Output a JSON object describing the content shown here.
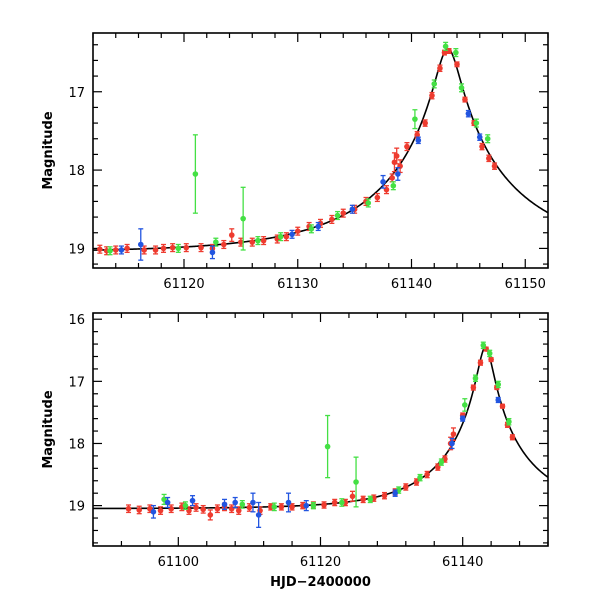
{
  "chart_data": [
    {
      "type": "scatter",
      "title": "",
      "xlabel": "",
      "ylabel": "Magnitude",
      "xlim": [
        61112,
        61152
      ],
      "ylim": [
        19.25,
        16.25
      ],
      "x_ticks": [
        61120,
        61130,
        61140,
        61150
      ],
      "x_tick_labels": [
        "61120",
        "61130",
        "61140",
        "61150"
      ],
      "y_ticks": [
        17,
        18,
        19
      ],
      "y_tick_labels": [
        "17",
        "18",
        "19"
      ],
      "model": {
        "baseline": 19.05,
        "peak_mag": 16.45,
        "t0": 61143.2,
        "u0": 0.085,
        "tE": 12
      },
      "series": [
        {
          "name": "red",
          "color": "#ee3b2f",
          "points": [
            [
              61112.6,
              19.01
            ],
            [
              61113.2,
              19.03
            ],
            [
              61114.0,
              19.02
            ],
            [
              61115.0,
              19.0
            ],
            [
              61116.5,
              19.02
            ],
            [
              61117.5,
              19.02
            ],
            [
              61118.2,
              19.0
            ],
            [
              61119.0,
              18.99
            ],
            [
              61120.2,
              18.99
            ],
            [
              61121.5,
              18.99
            ],
            [
              61122.5,
              19.0
            ],
            [
              61123.5,
              18.95
            ],
            [
              61124.2,
              18.83
            ],
            [
              61125.0,
              18.92
            ],
            [
              61126.0,
              18.92
            ],
            [
              61127.0,
              18.9
            ],
            [
              61128.2,
              18.88
            ],
            [
              61129.0,
              18.85
            ],
            [
              61130.0,
              18.78
            ],
            [
              61131.0,
              18.72
            ],
            [
              61132.0,
              18.68
            ],
            [
              61133.0,
              18.63
            ],
            [
              61134.0,
              18.55
            ],
            [
              61135.0,
              18.5
            ],
            [
              61136.0,
              18.4
            ],
            [
              61137.0,
              18.35
            ],
            [
              61137.8,
              18.25
            ],
            [
              61138.3,
              18.1
            ],
            [
              61138.5,
              17.9
            ],
            [
              61138.7,
              17.82
            ],
            [
              61139.0,
              17.95
            ],
            [
              61139.6,
              17.7
            ],
            [
              61140.5,
              17.55
            ],
            [
              61141.2,
              17.4
            ],
            [
              61141.8,
              17.05
            ],
            [
              61142.5,
              16.7
            ],
            [
              61142.9,
              16.5
            ],
            [
              61143.3,
              16.48
            ],
            [
              61144.0,
              16.65
            ],
            [
              61144.7,
              17.1
            ],
            [
              61145.5,
              17.4
            ],
            [
              61146.2,
              17.7
            ],
            [
              61146.8,
              17.85
            ],
            [
              61147.3,
              17.95
            ]
          ],
          "err": [
            0.05,
            0.05,
            0.05,
            0.05,
            0.05,
            0.05,
            0.05,
            0.05,
            0.05,
            0.05,
            0.05,
            0.05,
            0.08,
            0.05,
            0.05,
            0.05,
            0.05,
            0.05,
            0.05,
            0.05,
            0.05,
            0.05,
            0.05,
            0.05,
            0.05,
            0.05,
            0.05,
            0.05,
            0.12,
            0.1,
            0.08,
            0.05,
            0.04,
            0.04,
            0.04,
            0.04,
            0.03,
            0.03,
            0.03,
            0.03,
            0.03,
            0.04,
            0.04,
            0.04
          ]
        },
        {
          "name": "green",
          "color": "#44e044",
          "points": [
            [
              61113.5,
              19.03
            ],
            [
              61119.5,
              19.0
            ],
            [
              61121.0,
              18.05
            ],
            [
              61122.8,
              18.92
            ],
            [
              61125.2,
              18.62
            ],
            [
              61126.5,
              18.9
            ],
            [
              61128.5,
              18.85
            ],
            [
              61131.2,
              18.75
            ],
            [
              61133.5,
              18.58
            ],
            [
              61136.2,
              18.42
            ],
            [
              61138.4,
              18.2
            ],
            [
              61140.3,
              17.35
            ],
            [
              61142.0,
              16.9
            ],
            [
              61143.0,
              16.42
            ],
            [
              61143.9,
              16.5
            ],
            [
              61144.4,
              16.95
            ],
            [
              61145.7,
              17.4
            ],
            [
              61146.7,
              17.6
            ]
          ],
          "err": [
            0.05,
            0.05,
            0.5,
            0.05,
            0.4,
            0.05,
            0.05,
            0.05,
            0.05,
            0.05,
            0.05,
            0.12,
            0.05,
            0.05,
            0.05,
            0.05,
            0.05,
            0.05
          ]
        },
        {
          "name": "blue",
          "color": "#2255e0",
          "points": [
            [
              61114.5,
              19.02
            ],
            [
              61116.2,
              18.95
            ],
            [
              61122.5,
              19.05
            ],
            [
              61129.5,
              18.82
            ],
            [
              61131.8,
              18.72
            ],
            [
              61134.8,
              18.5
            ],
            [
              61137.5,
              18.15
            ],
            [
              61138.8,
              18.05
            ],
            [
              61140.6,
              17.62
            ],
            [
              61145.0,
              17.28
            ],
            [
              61146.0,
              17.58
            ]
          ],
          "err": [
            0.05,
            0.2,
            0.08,
            0.05,
            0.05,
            0.05,
            0.08,
            0.08,
            0.04,
            0.04,
            0.04
          ]
        }
      ]
    },
    {
      "type": "scatter",
      "title": "",
      "xlabel": "HJD−2400000",
      "ylabel": "Magnitude",
      "xlim": [
        61088,
        61152
      ],
      "ylim": [
        19.65,
        15.9
      ],
      "x_ticks": [
        61100,
        61120,
        61140
      ],
      "x_tick_labels": [
        "61100",
        "61120",
        "61140"
      ],
      "y_ticks": [
        16,
        17,
        18,
        19
      ],
      "y_tick_labels": [
        "16",
        "17",
        "18",
        "19"
      ],
      "model": {
        "baseline": 19.05,
        "peak_mag": 16.45,
        "t0": 61143.2,
        "u0": 0.085,
        "tE": 12
      },
      "series": [
        {
          "name": "red",
          "color": "#ee3b2f",
          "points": [
            [
              61093.0,
              19.05
            ],
            [
              61094.5,
              19.07
            ],
            [
              61096.0,
              19.05
            ],
            [
              61097.5,
              19.08
            ],
            [
              61099.0,
              19.05
            ],
            [
              61100.5,
              19.02
            ],
            [
              61101.5,
              19.08
            ],
            [
              61102.5,
              19.03
            ],
            [
              61103.5,
              19.06
            ],
            [
              61104.5,
              19.15
            ],
            [
              61105.5,
              19.05
            ],
            [
              61106.5,
              19.02
            ],
            [
              61107.5,
              19.05
            ],
            [
              61108.5,
              19.08
            ],
            [
              61110.0,
              19.03
            ],
            [
              61111.5,
              19.08
            ],
            [
              61113.0,
              19.02
            ],
            [
              61114.5,
              19.02
            ],
            [
              61116.0,
              19.02
            ],
            [
              61117.5,
              19.0
            ],
            [
              61119.0,
              18.99
            ],
            [
              61120.5,
              18.99
            ],
            [
              61122.0,
              18.95
            ],
            [
              61123.5,
              18.95
            ],
            [
              61124.5,
              18.85
            ],
            [
              61126.0,
              18.9
            ],
            [
              61127.5,
              18.88
            ],
            [
              61129.0,
              18.84
            ],
            [
              61130.5,
              18.78
            ],
            [
              61132.0,
              18.7
            ],
            [
              61133.5,
              18.62
            ],
            [
              61135.0,
              18.5
            ],
            [
              61136.5,
              18.38
            ],
            [
              61137.5,
              18.25
            ],
            [
              61138.3,
              18.0
            ],
            [
              61138.7,
              17.85
            ],
            [
              61140.0,
              17.55
            ],
            [
              61141.5,
              17.1
            ],
            [
              61142.5,
              16.7
            ],
            [
              61143.3,
              16.48
            ],
            [
              61144.0,
              16.65
            ],
            [
              61144.8,
              17.1
            ],
            [
              61145.6,
              17.4
            ],
            [
              61146.3,
              17.7
            ],
            [
              61147.0,
              17.9
            ]
          ],
          "err": [
            0.06,
            0.06,
            0.06,
            0.06,
            0.06,
            0.06,
            0.06,
            0.06,
            0.06,
            0.08,
            0.06,
            0.06,
            0.06,
            0.06,
            0.06,
            0.06,
            0.05,
            0.05,
            0.05,
            0.05,
            0.05,
            0.05,
            0.05,
            0.05,
            0.08,
            0.05,
            0.05,
            0.05,
            0.05,
            0.05,
            0.05,
            0.05,
            0.05,
            0.05,
            0.1,
            0.1,
            0.04,
            0.04,
            0.04,
            0.03,
            0.03,
            0.03,
            0.03,
            0.04,
            0.04
          ]
        },
        {
          "name": "green",
          "color": "#44e044",
          "points": [
            [
              61098.0,
              18.9
            ],
            [
              61101.0,
              19.0
            ],
            [
              61109.0,
              18.98
            ],
            [
              61113.5,
              19.02
            ],
            [
              61119.0,
              19.0
            ],
            [
              61121.0,
              18.05
            ],
            [
              61123.0,
              18.95
            ],
            [
              61125.0,
              18.62
            ],
            [
              61127.0,
              18.9
            ],
            [
              61131.0,
              18.75
            ],
            [
              61134.0,
              18.55
            ],
            [
              61137.0,
              18.3
            ],
            [
              61140.3,
              17.38
            ],
            [
              61141.8,
              16.95
            ],
            [
              61142.9,
              16.42
            ],
            [
              61143.8,
              16.55
            ],
            [
              61145.0,
              17.05
            ],
            [
              61146.5,
              17.65
            ]
          ],
          "err": [
            0.08,
            0.06,
            0.06,
            0.06,
            0.05,
            0.5,
            0.06,
            0.4,
            0.05,
            0.05,
            0.05,
            0.05,
            0.1,
            0.05,
            0.05,
            0.05,
            0.05,
            0.05
          ]
        },
        {
          "name": "blue",
          "color": "#2255e0",
          "points": [
            [
              61096.5,
              19.1
            ],
            [
              61098.5,
              18.95
            ],
            [
              61102.0,
              18.92
            ],
            [
              61106.5,
              18.98
            ],
            [
              61108.0,
              18.95
            ],
            [
              61110.5,
              18.95
            ],
            [
              61111.3,
              19.15
            ],
            [
              61115.5,
              18.95
            ],
            [
              61118.0,
              19.0
            ],
            [
              61130.5,
              18.8
            ],
            [
              61138.5,
              18.0
            ],
            [
              61140.0,
              17.6
            ],
            [
              61145.0,
              17.3
            ]
          ],
          "err": [
            0.1,
            0.08,
            0.08,
            0.08,
            0.08,
            0.15,
            0.2,
            0.15,
            0.08,
            0.05,
            0.08,
            0.04,
            0.04
          ]
        }
      ]
    }
  ]
}
